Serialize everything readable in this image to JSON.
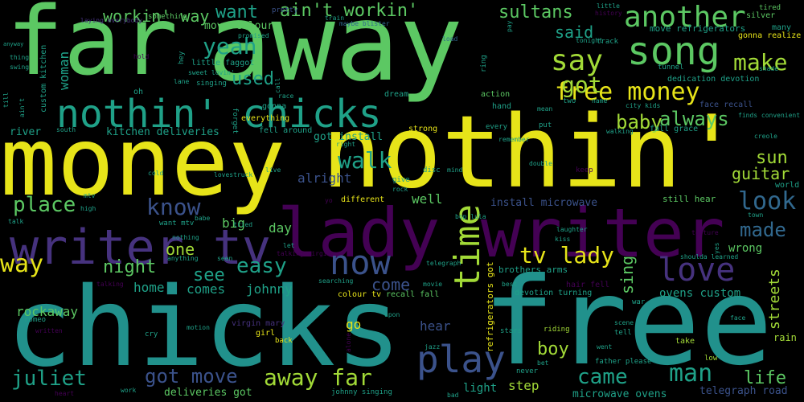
{
  "colors": {
    "yellow": "#e7e419",
    "green": "#5cc863",
    "lime": "#a2da37",
    "teal": "#21918c",
    "cyan": "#1fa188",
    "blue": "#3b528b",
    "indigo": "#46327e",
    "purple": "#440154",
    "slate": "#31688e"
  },
  "words": {
    "far": "far",
    "away": "away",
    "money": "money",
    "nothin_big": "nothin'",
    "chicks": "chicks",
    "free": "free",
    "lady_writer": "lady writer",
    "writer_tv": "writer tv",
    "nothin_chicks": "nothin' chicks",
    "free_money": "free money",
    "song": "song",
    "another": "another",
    "say": "say",
    "make": "make",
    "got": "got",
    "baby": "baby",
    "always": "always",
    "time": "time",
    "play": "play",
    "now": "now",
    "love": "love",
    "yeah": "yeah",
    "want": "want",
    "aint_workin": "ain't workin'",
    "workin_way": "workin' way",
    "sultans": "sultans",
    "said": "said",
    "used": "used",
    "woman": "woman",
    "walk": "walk",
    "know": "know",
    "place": "place",
    "way": "way",
    "night": "night",
    "easy": "easy",
    "one": "one",
    "see": "see",
    "tv_lady": "tv lady",
    "come": "come",
    "juliet": "juliet",
    "got_move": "got move",
    "away_far": "away far",
    "came": "came",
    "man": "man",
    "life": "life",
    "boy": "boy",
    "look": "look",
    "made": "made",
    "wrong": "wrong",
    "sun": "sun",
    "guitar": "guitar",
    "streets": "streets",
    "sing": "sing",
    "rockaway": "rockaway",
    "day": "day",
    "big": "big",
    "well": "well",
    "alright": "alright",
    "home": "home",
    "comes": "comes",
    "johnny": "johnny",
    "hear": "hear",
    "step": "step",
    "go": "go",
    "light": "light",
    "move_colour": "move colour",
    "little_faggot": "little faggot",
    "kitchen_deliveries": "kitchen deliveries",
    "river": "river",
    "got_install": "got install",
    "install_microwave": "install microwave",
    "ovens_custom": "ovens custom",
    "brothers_arms": "brothers arms",
    "colour_tv": "colour tv",
    "recall_fall": "recall fall",
    "deliveries_got": "deliveries got",
    "microwave_ovens": "microwave ovens",
    "telegraph_road": "telegraph road",
    "refrigerators_got": "refrigerators got",
    "move_refrigerators": "move refrigerators",
    "dedication_devotion": "dedication devotion",
    "devotion_turning": "devotion turning",
    "gonna_realize": "gonna realize",
    "face_recall": "face recall",
    "fall_grace": "fall grace",
    "still_hear": "still hear",
    "hair_fell": "hair fell",
    "fell_around": "fell around",
    "custom_kitchen": "custom kitchen",
    "strong": "strong",
    "action": "action",
    "hand": "hand",
    "dream": "dream",
    "everything": "everything",
    "gonna": "gonna",
    "tunnel": "tunnel",
    "track": "track",
    "different": "different",
    "pretty": "pretty",
    "something": "something",
    "laying_everybody": "laying everybody",
    "promised": "promised",
    "train": "train",
    "maybe_blister": "maybe blister",
    "load": "load",
    "tonight": "tonight",
    "ring": "ring",
    "silver": "silver",
    "tired": "tired",
    "history": "history",
    "little": "little",
    "many": "many",
    "shade": "shade",
    "finds_convenient": "finds convenient",
    "creole": "creole",
    "city_kids": "city kids",
    "walking": "walking",
    "mean": "mean",
    "name": "name",
    "two": "two",
    "put": "put",
    "every": "every",
    "remember": "remember",
    "double": "double",
    "keep": "keep",
    "mind": "mind",
    "give": "give",
    "rock": "rock",
    "live": "live",
    "lovestruck": "lovestruck",
    "cold": "cold",
    "talk": "talk",
    "mtv": "mtv",
    "high": "high",
    "want_mtv": "want mtv",
    "babe": "babe",
    "tried": "tried",
    "nothing": "nothing",
    "anything": "anything",
    "seen": "seen",
    "talking_virgin": "talking virgin",
    "let": "let",
    "talking": "talking",
    "searching": "searching",
    "telegraph": "telegraph",
    "movie": "movie",
    "best": "best",
    "bop_lula": "bop lula",
    "laughter": "laughter",
    "kiss": "kiss",
    "torture": "torture",
    "town": "town",
    "world": "world",
    "shoulda_learned": "shoulda learned",
    "yes": "yes",
    "romeo": "romeo",
    "written": "written",
    "motion": "motion",
    "cry": "cry",
    "virgin_mary": "virgin mary",
    "girl": "girl",
    "back": "back",
    "upon": "upon",
    "stars": "stars",
    "riding": "riding",
    "scene": "scene",
    "tell": "tell",
    "take": "take",
    "went": "went",
    "low": "low",
    "rain": "rain",
    "face": "face",
    "war": "war",
    "father_please": "father please",
    "never": "never",
    "bet": "bet",
    "heart": "heart",
    "work": "work",
    "johnny_singing": "johnny singing",
    "bad": "bad",
    "jazz": "jazz",
    "alone": "alone",
    "singing": "singing",
    "lane": "lane",
    "sweet_lovin": "sweet lovin'",
    "hey": "hey",
    "hold": "hold",
    "oh": "oh",
    "call": "call",
    "race": "race",
    "south": "south",
    "forget": "forget",
    "right": "right",
    "anyway": "anyway",
    "thing": "thing",
    "swing": "swing",
    "till": "till",
    "aint": "ain't",
    "yo": "yo",
    "pay": "pay",
    "disc": "disc"
  }
}
